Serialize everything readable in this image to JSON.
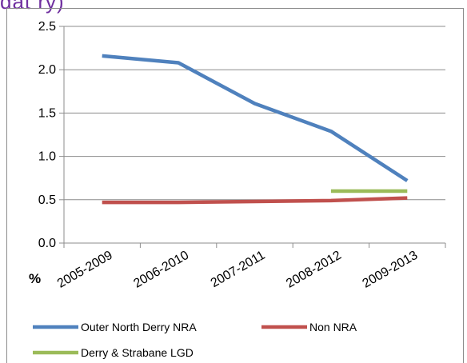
{
  "title_fragment": "dat ry)",
  "chart_data": {
    "type": "line",
    "title": "",
    "xlabel": "",
    "ylabel": "%",
    "categories": [
      "2005-2009",
      "2006-2010",
      "2007-2011",
      "2008-2012",
      "2009-2013"
    ],
    "ylim": [
      0.0,
      2.5
    ],
    "yticks": [
      "0.0",
      "0.5",
      "1.0",
      "1.5",
      "2.0",
      "2.5"
    ],
    "grid": true,
    "legend_position": "bottom",
    "series": [
      {
        "name": "Outer North Derry NRA",
        "color": "#4f81bd",
        "values": [
          2.16,
          2.08,
          1.61,
          1.29,
          0.72
        ]
      },
      {
        "name": "Non NRA",
        "color": "#c0504d",
        "values": [
          0.47,
          0.47,
          0.48,
          0.49,
          0.52
        ]
      },
      {
        "name": "Derry & Strabane LGD",
        "color": "#9bbb59",
        "values": [
          null,
          null,
          null,
          0.6,
          0.6
        ]
      }
    ]
  }
}
